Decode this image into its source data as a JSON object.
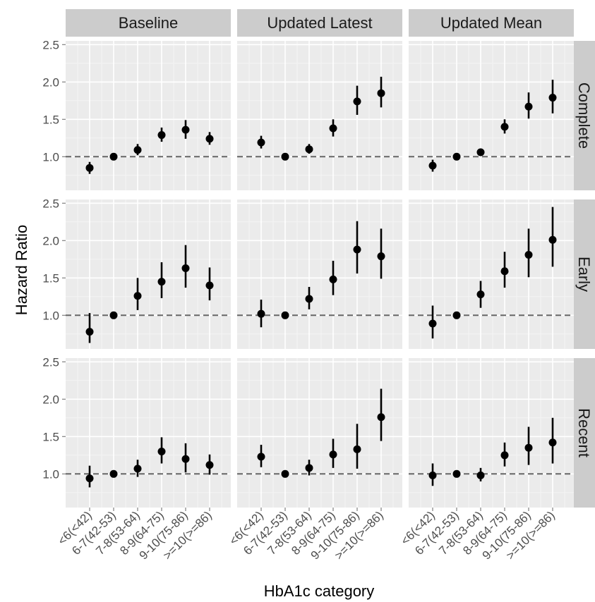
{
  "chart_data": {
    "type": "scatter",
    "xlabel": "HbA1c category",
    "ylabel": "Hazard Ratio",
    "categories": [
      "<6(<42)",
      "6-7(42-53)",
      "7-8(53-64)",
      "8-9(64-75)",
      "9-10(75-86)",
      ">=10(>=86)"
    ],
    "ylim": [
      0.55,
      2.55
    ],
    "yticks": [
      1.0,
      1.5,
      2.0,
      2.5
    ],
    "ytick_labels": [
      "1.0",
      "1.5",
      "2.0",
      "2.5"
    ],
    "reference_line": 1.0,
    "grid": true,
    "columns": [
      "Baseline",
      "Updated Latest",
      "Updated Mean"
    ],
    "rows": [
      "Complete",
      "Early",
      "Recent"
    ],
    "panels": [
      {
        "row": "Complete",
        "col": "Baseline",
        "hr": [
          0.85,
          1.0,
          1.09,
          1.29,
          1.36,
          1.24
        ],
        "lo": [
          0.77,
          1.0,
          1.02,
          1.2,
          1.24,
          1.16
        ],
        "hi": [
          0.93,
          1.0,
          1.17,
          1.39,
          1.49,
          1.33
        ]
      },
      {
        "row": "Complete",
        "col": "Updated Latest",
        "hr": [
          1.19,
          1.0,
          1.1,
          1.38,
          1.74,
          1.85
        ],
        "lo": [
          1.11,
          1.0,
          1.04,
          1.27,
          1.56,
          1.66
        ],
        "hi": [
          1.28,
          1.0,
          1.17,
          1.5,
          1.95,
          2.07
        ]
      },
      {
        "row": "Complete",
        "col": "Updated Mean",
        "hr": [
          0.88,
          1.0,
          1.06,
          1.4,
          1.67,
          1.79
        ],
        "lo": [
          0.8,
          1.0,
          1.01,
          1.31,
          1.51,
          1.58
        ],
        "hi": [
          0.96,
          1.0,
          1.11,
          1.5,
          1.86,
          2.03
        ]
      },
      {
        "row": "Early",
        "col": "Baseline",
        "hr": [
          0.78,
          1.0,
          1.26,
          1.45,
          1.63,
          1.4
        ],
        "lo": [
          0.63,
          1.0,
          1.07,
          1.23,
          1.37,
          1.2
        ],
        "hi": [
          1.03,
          1.0,
          1.5,
          1.71,
          1.94,
          1.64
        ]
      },
      {
        "row": "Early",
        "col": "Updated Latest",
        "hr": [
          1.02,
          1.0,
          1.22,
          1.48,
          1.88,
          1.79
        ],
        "lo": [
          0.84,
          1.0,
          1.08,
          1.27,
          1.56,
          1.49
        ],
        "hi": [
          1.21,
          1.0,
          1.38,
          1.73,
          2.26,
          2.16
        ]
      },
      {
        "row": "Early",
        "col": "Updated Mean",
        "hr": [
          0.89,
          1.0,
          1.28,
          1.59,
          1.81,
          2.01
        ],
        "lo": [
          0.69,
          1.0,
          1.1,
          1.37,
          1.51,
          1.65
        ],
        "hi": [
          1.13,
          1.0,
          1.46,
          1.85,
          2.16,
          2.45
        ]
      },
      {
        "row": "Recent",
        "col": "Baseline",
        "hr": [
          0.94,
          1.0,
          1.07,
          1.3,
          1.2,
          1.12
        ],
        "lo": [
          0.82,
          1.0,
          0.96,
          1.14,
          1.02,
          0.99
        ],
        "hi": [
          1.11,
          1.0,
          1.19,
          1.49,
          1.41,
          1.26
        ]
      },
      {
        "row": "Recent",
        "col": "Updated Latest",
        "hr": [
          1.23,
          1.0,
          1.08,
          1.26,
          1.33,
          1.76
        ],
        "lo": [
          1.09,
          1.0,
          0.98,
          1.08,
          1.07,
          1.44
        ],
        "hi": [
          1.39,
          1.0,
          1.19,
          1.47,
          1.67,
          2.14
        ]
      },
      {
        "row": "Recent",
        "col": "Updated Mean",
        "hr": [
          0.98,
          1.0,
          0.98,
          1.25,
          1.35,
          1.42
        ],
        "lo": [
          0.84,
          1.0,
          0.9,
          1.1,
          1.12,
          1.14
        ],
        "hi": [
          1.14,
          1.0,
          1.08,
          1.42,
          1.63,
          1.75
        ]
      }
    ],
    "colors": {
      "panel_bg": "#ebebeb",
      "strip_bg": "#cccccc",
      "grid_major": "#ffffff",
      "grid_minor": "#f4f4f4",
      "point": "#000000",
      "ref_line": "#666666"
    }
  }
}
